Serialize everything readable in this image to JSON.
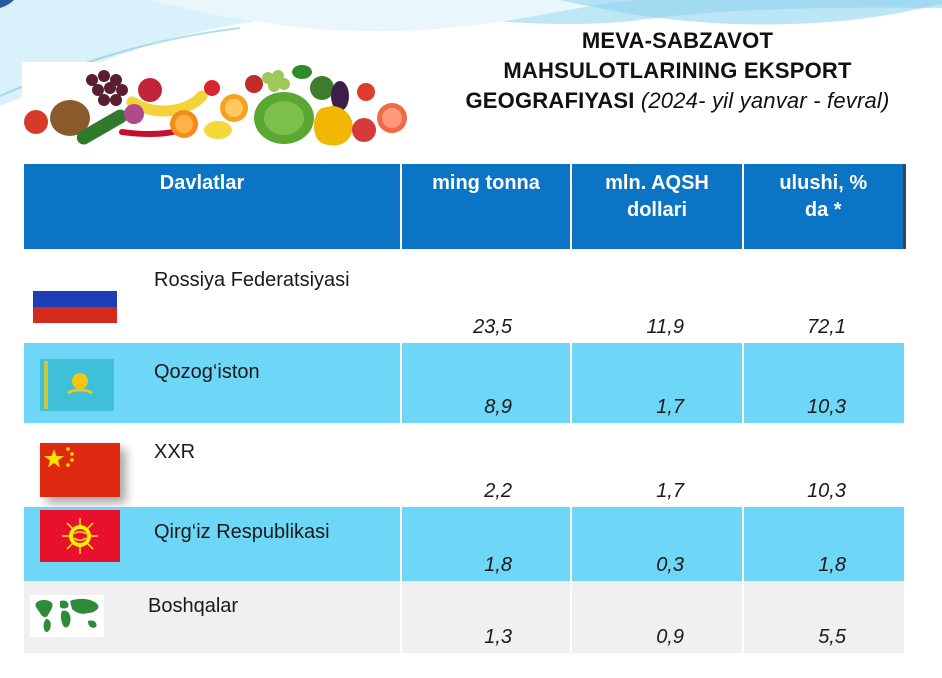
{
  "title": {
    "line1": "MEVA-SABZAVOT",
    "line2": "MAHSULOTLARINING EKSPORT",
    "line3_bold": "GEOGRAFIYASI",
    "line3_period": "(2024- yil yanvar - fevral)"
  },
  "table": {
    "headers": {
      "country": "Davlatlar",
      "tonnes": "ming tonna",
      "usd": "mln. AQSH dollari",
      "share": "ulushi, % da *"
    },
    "rows": [
      {
        "country": "Rossiya Federatsiyasi",
        "tonnes": "23,5",
        "usd": "11,9",
        "share": "72,1",
        "flag_icon": "russia-flag-icon"
      },
      {
        "country": "Qozog‘iston",
        "tonnes": "8,9",
        "usd": "1,7",
        "share": "10,3",
        "flag_icon": "kazakhstan-flag-icon"
      },
      {
        "country": "XXR",
        "tonnes": "2,2",
        "usd": "1,7",
        "share": "10,3",
        "flag_icon": "china-flag-icon"
      },
      {
        "country": "Qirg‘iz Respublikasi",
        "tonnes": "1,8",
        "usd": "0,3",
        "share": "1,8",
        "flag_icon": "kyrgyzstan-flag-icon"
      },
      {
        "country": "Boshqalar",
        "tonnes": "1,3",
        "usd": "0,9",
        "share": "5,5",
        "flag_icon": "world-map-icon"
      }
    ]
  },
  "colors": {
    "header_blue": "#0b74c4",
    "row_light_blue": "#6ed6f7",
    "row_gray": "#f0f0f0"
  }
}
